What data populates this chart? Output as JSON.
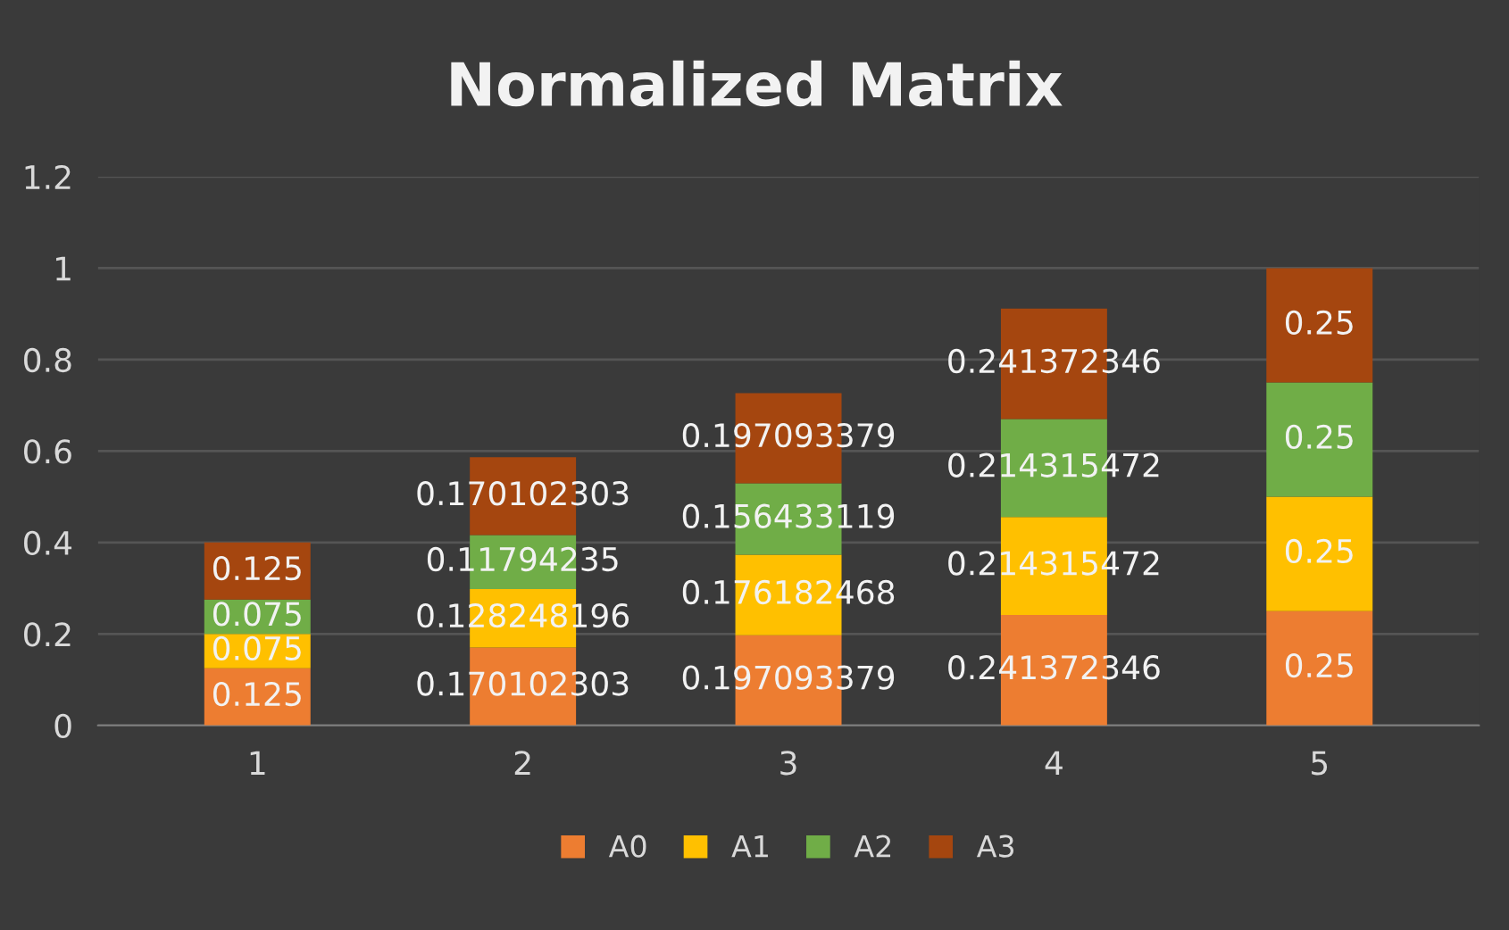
{
  "chart_data": {
    "type": "bar",
    "title": "Normalized Matrix",
    "stacked": true,
    "data_labels": true,
    "grid": "y",
    "legend": "bottom",
    "categories": [
      "1",
      "2",
      "3",
      "4",
      "5"
    ],
    "ylim": [
      0,
      1.2
    ],
    "yticks": [
      0,
      0.2,
      0.4,
      0.6,
      0.8,
      1,
      1.2
    ],
    "series": [
      {
        "name": "A0",
        "color": "#ed7d31",
        "values": [
          0.125,
          0.170102303,
          0.197093379,
          0.241372346,
          0.25
        ]
      },
      {
        "name": "A1",
        "color": "#ffc000",
        "values": [
          0.075,
          0.128248196,
          0.176182468,
          0.214315472,
          0.25
        ]
      },
      {
        "name": "A2",
        "color": "#70ad47",
        "values": [
          0.075,
          0.11794235,
          0.156433119,
          0.214315472,
          0.25
        ]
      },
      {
        "name": "A3",
        "color": "#a5460f",
        "values": [
          0.125,
          0.170102303,
          0.197093379,
          0.241372346,
          0.25
        ]
      }
    ]
  }
}
